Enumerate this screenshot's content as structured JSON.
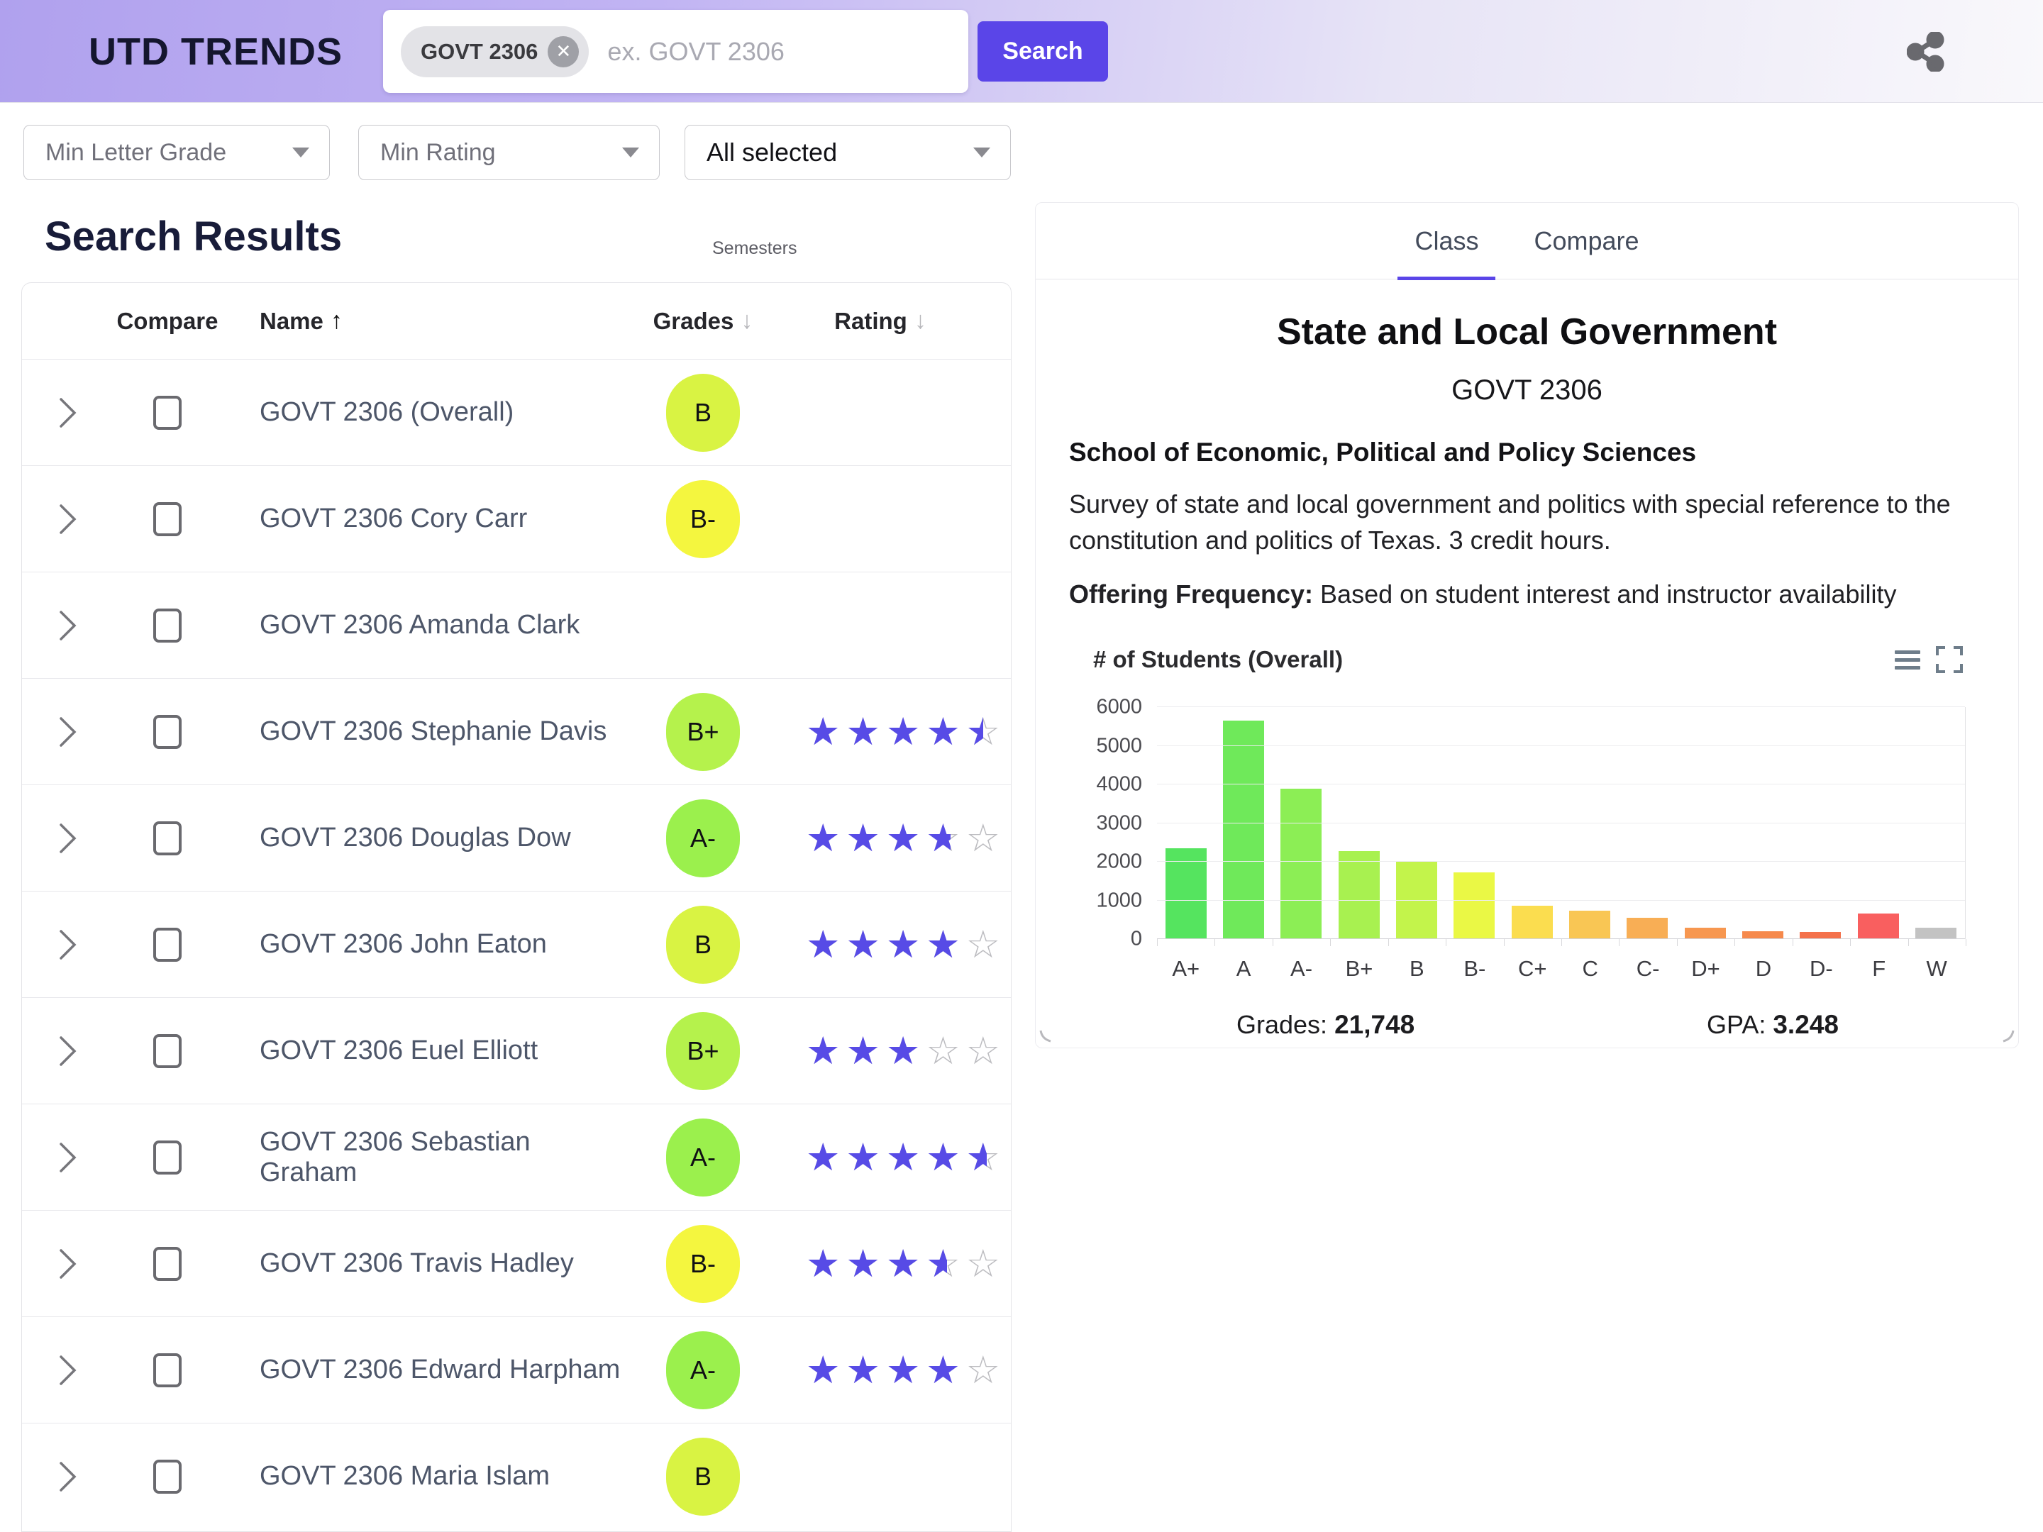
{
  "header": {
    "logo": "UTD TRENDS",
    "search_chip": "GOVT 2306",
    "search_placeholder": "ex. GOVT 2306",
    "search_button": "Search"
  },
  "filters": {
    "min_letter_grade": "Min Letter Grade",
    "min_rating": "Min Rating",
    "semesters_label": "Semesters",
    "semesters_value": "All selected"
  },
  "results": {
    "heading": "Search Results",
    "columns": {
      "compare": "Compare",
      "name": "Name",
      "grades": "Grades",
      "rating": "Rating"
    },
    "sort": {
      "name_arrow": "↑",
      "grades_arrow": "↓",
      "rating_arrow": "↓"
    },
    "rows": [
      {
        "name": "GOVT 2306 (Overall)",
        "grade": "B",
        "rating": null
      },
      {
        "name": "GOVT 2306 Cory Carr",
        "grade": "B-",
        "rating": null
      },
      {
        "name": "GOVT 2306 Amanda Clark",
        "grade": null,
        "rating": null
      },
      {
        "name": "GOVT 2306 Stephanie Davis",
        "grade": "B+",
        "rating": 4.9
      },
      {
        "name": "GOVT 2306 Douglas Dow",
        "grade": "A-",
        "rating": 4.0
      },
      {
        "name": "GOVT 2306 John Eaton",
        "grade": "B",
        "rating": 4.2
      },
      {
        "name": "GOVT 2306 Euel Elliott",
        "grade": "B+",
        "rating": 3.3
      },
      {
        "name": "GOVT 2306 Sebastian Graham",
        "grade": "A-",
        "rating": 5.0
      },
      {
        "name": "GOVT 2306 Travis Hadley",
        "grade": "B-",
        "rating": 3.9
      },
      {
        "name": "GOVT 2306 Edward Harpham",
        "grade": "A-",
        "rating": 4.45
      },
      {
        "name": "GOVT 2306 Maria Islam",
        "grade": "B",
        "rating": null
      }
    ],
    "grade_colors": {
      "A-": "#9bf04d",
      "B+": "#b5f24c",
      "B": "#d9f343",
      "B-": "#f4f63f"
    }
  },
  "panel": {
    "tabs": [
      {
        "label": "Class",
        "active": true
      },
      {
        "label": "Compare",
        "active": false
      }
    ],
    "title": "State and Local Government",
    "subtitle": "GOVT 2306",
    "school": "School of Economic, Political and Policy Sciences",
    "description": "Survey of state and local government and politics with special reference to the constitution and politics of Texas. 3 credit hours.",
    "offering_label": "Offering Frequency:",
    "offering_value": " Based on student interest and instructor availability",
    "stats": {
      "grades_label": "Grades: ",
      "grades_value": "21,748",
      "gpa_label": "GPA: ",
      "gpa_value": "3.248"
    }
  },
  "chart_data": {
    "type": "bar",
    "title": "# of Students (Overall)",
    "categories": [
      "A+",
      "A",
      "A-",
      "B+",
      "B",
      "B-",
      "C+",
      "C",
      "C-",
      "D+",
      "D",
      "D-",
      "F",
      "W"
    ],
    "values": [
      2350,
      5650,
      3900,
      2280,
      2000,
      1720,
      870,
      730,
      550,
      290,
      215,
      185,
      660,
      290
    ],
    "bar_colors": [
      "#55e45f",
      "#6fe95a",
      "#8cee55",
      "#a8f150",
      "#c3f44b",
      "#eaf845",
      "#fbdd4f",
      "#f9c654",
      "#f8ae55",
      "#f79750",
      "#f6894c",
      "#f4714b",
      "#f95f5f",
      "#c3c3c3"
    ],
    "xlabel": "",
    "ylabel": "",
    "ylim": [
      0,
      6000
    ],
    "ytick_step": 1000,
    "grid": true,
    "legend": "none"
  },
  "colors": {
    "accent": "#5a45e8",
    "star_filled": "#574be6",
    "star_empty": "#bcbcc0",
    "header_gradient_left": "#b0a1ee",
    "header_gradient_right": "#f9f8fb"
  }
}
